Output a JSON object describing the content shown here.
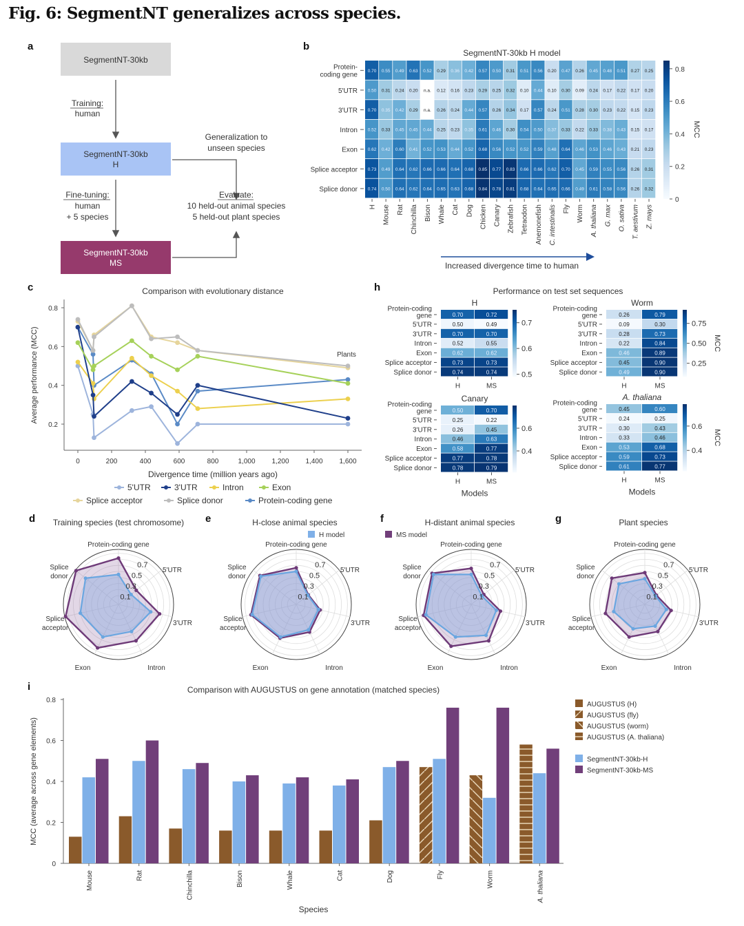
{
  "figure_title": "Fig. 6: SegmentNT generalizes across species.",
  "panel_labels": [
    "a",
    "b",
    "c",
    "d",
    "e",
    "f",
    "g",
    "h",
    "i"
  ],
  "colors": {
    "box_base": "#d9d9d9",
    "box_h": "#a9c4f5",
    "box_ms": "#963a6c",
    "h_model": "#7fb0e8",
    "ms_model": "#713f7a",
    "augustus": "#8a5a2b",
    "arrow": "#1f4e9c"
  },
  "panel_a": {
    "box_base": [
      "SegmentNT-30kb"
    ],
    "box_h": [
      "SegmentNT-30kb",
      "H"
    ],
    "box_ms": [
      "SegmentNT-30kb",
      "MS"
    ],
    "training": [
      "Training:",
      "human"
    ],
    "finetuning": [
      "Fine-tuning:",
      "human",
      "+ 5 species"
    ],
    "generalization": [
      "Generalization to",
      "unseen species"
    ],
    "evaluate": [
      "Evaluate:",
      "10 held-out animal species",
      "5 held-out plant species"
    ]
  },
  "chart_data": [
    {
      "type": "heatmap",
      "title": "SegmentNT-30kb H model",
      "rows": [
        [
          "Protein-",
          "coding gene"
        ],
        [
          "5'UTR"
        ],
        [
          "3'UTR"
        ],
        [
          "Intron"
        ],
        [
          "Exon"
        ],
        [
          "Splice acceptor"
        ],
        [
          "Splice donor"
        ]
      ],
      "columns": [
        "H",
        "Mouse",
        "Rat",
        "Chinchilla",
        "Bison",
        "Whale",
        "Cat",
        "Dog",
        "Chicken",
        "Canary",
        "Zebrafish",
        "Tetraodon",
        "Anemonefish",
        "C. intestinalis",
        "Fly",
        "Worm",
        "A. thaliana",
        "G. max",
        "O. sativa",
        "T. aestivum",
        "Z. mays"
      ],
      "values": [
        [
          0.7,
          0.55,
          0.49,
          0.63,
          0.52,
          0.29,
          0.36,
          0.42,
          0.57,
          0.5,
          0.31,
          0.51,
          0.56,
          0.2,
          0.47,
          0.26,
          0.45,
          0.48,
          0.51,
          0.27,
          0.25
        ],
        [
          0.5,
          0.31,
          0.24,
          0.2,
          null,
          0.12,
          0.16,
          0.23,
          0.29,
          0.25,
          0.32,
          0.1,
          0.44,
          0.1,
          0.3,
          0.09,
          0.24,
          0.17,
          0.22,
          0.17,
          0.2
        ],
        [
          0.7,
          0.35,
          0.42,
          0.29,
          null,
          0.26,
          0.24,
          0.44,
          0.57,
          0.26,
          0.34,
          0.17,
          0.57,
          0.24,
          0.51,
          0.28,
          0.3,
          0.23,
          0.22,
          0.15,
          0.23
        ],
        [
          0.52,
          0.33,
          0.45,
          0.45,
          0.44,
          0.25,
          0.23,
          0.35,
          0.61,
          0.46,
          0.3,
          0.54,
          0.5,
          0.37,
          0.33,
          0.22,
          0.33,
          0.38,
          0.43,
          0.15,
          0.17
        ],
        [
          0.62,
          0.42,
          0.6,
          0.41,
          0.52,
          0.53,
          0.44,
          0.52,
          0.68,
          0.56,
          0.52,
          0.52,
          0.59,
          0.48,
          0.64,
          0.46,
          0.53,
          0.46,
          0.43,
          0.21,
          0.23
        ],
        [
          0.73,
          0.49,
          0.64,
          0.62,
          0.66,
          0.66,
          0.64,
          0.68,
          0.85,
          0.77,
          0.83,
          0.66,
          0.66,
          0.62,
          0.7,
          0.45,
          0.59,
          0.55,
          0.56,
          0.26,
          0.31
        ],
        [
          0.74,
          0.5,
          0.64,
          0.62,
          0.64,
          0.65,
          0.63,
          0.68,
          0.84,
          0.78,
          0.81,
          0.68,
          0.64,
          0.65,
          0.66,
          0.49,
          0.61,
          0.58,
          0.56,
          0.26,
          0.32
        ]
      ],
      "na_label": "n.a.",
      "colorbar_label": "MCC",
      "colorbar_range": [
        0,
        0.85
      ],
      "colorbar_ticks": [
        0,
        0.2,
        0.4,
        0.6,
        0.8
      ],
      "colorbar_tick_labels": [
        "0",
        "0.2",
        "0.4",
        "0.6",
        "0.8"
      ],
      "xlabel": "Increased divergence time to human"
    },
    {
      "type": "line",
      "title": "Comparison with evolutionary distance",
      "xlabel": "Divergence time (million years ago)",
      "ylabel": "Average performance (MCC)",
      "xlim": [
        -40,
        1660
      ],
      "ylim": [
        0.07,
        0.84
      ],
      "xticks": [
        0,
        200,
        400,
        600,
        800,
        1000,
        1200,
        1400,
        1600
      ],
      "xtick_labels": [
        "0",
        "200",
        "400",
        "600",
        "800",
        "1,000",
        "1,200",
        "1,400",
        "1,600"
      ],
      "yticks": [
        0.2,
        0.4,
        0.6,
        0.8
      ],
      "ytick_labels": [
        "0.2",
        "0.4",
        "0.6",
        "0.8"
      ],
      "annotation": "Plants",
      "x": [
        0,
        90,
        96,
        320,
        435,
        590,
        710,
        1600
      ],
      "series": [
        {
          "name": "5'UTR",
          "color": "#9db4dc",
          "values": [
            0.5,
            0.25,
            0.13,
            0.27,
            0.29,
            0.1,
            0.2,
            0.2
          ]
        },
        {
          "name": "3'UTR",
          "color": "#1f3f8a",
          "values": [
            0.7,
            0.35,
            0.24,
            0.42,
            0.36,
            0.25,
            0.4,
            0.23
          ]
        },
        {
          "name": "Intron",
          "color": "#ecd04e",
          "values": [
            0.52,
            0.41,
            0.33,
            0.54,
            0.45,
            0.37,
            0.28,
            0.33
          ]
        },
        {
          "name": "Exon",
          "color": "#a6d15a",
          "values": [
            0.62,
            0.48,
            0.5,
            0.63,
            0.55,
            0.48,
            0.55,
            0.41
          ]
        },
        {
          "name": "Splice acceptor",
          "color": "#e6d59c",
          "values": [
            0.73,
            0.58,
            0.66,
            0.81,
            0.65,
            0.62,
            0.58,
            0.49
          ]
        },
        {
          "name": "Splice donor",
          "color": "#bdbdbd",
          "values": [
            0.74,
            0.58,
            0.65,
            0.81,
            0.64,
            0.65,
            0.58,
            0.5
          ]
        },
        {
          "name": "Protein-coding gene",
          "color": "#5a8ac6",
          "values": [
            0.7,
            0.56,
            0.4,
            0.53,
            0.46,
            0.2,
            0.37,
            0.43
          ]
        }
      ]
    },
    {
      "type": "radar",
      "title": "Training species (test chromosome)",
      "axes": [
        [
          "Protein-coding gene"
        ],
        [
          "5'UTR"
        ],
        [
          "3'UTR"
        ],
        [
          "Intron"
        ],
        [
          "Exon"
        ],
        [
          "Splice",
          "acceptor"
        ],
        [
          "Splice",
          "donor"
        ]
      ],
      "ring_labels": [
        "0.1",
        "0.3",
        "0.5",
        "0.7"
      ],
      "series": [
        {
          "name": "H model",
          "values": [
            0.45,
            0.22,
            0.5,
            0.45,
            0.55,
            0.6,
            0.65
          ]
        },
        {
          "name": "MS model",
          "values": [
            0.72,
            0.33,
            0.65,
            0.62,
            0.75,
            0.85,
            0.85
          ]
        }
      ]
    },
    {
      "type": "radar",
      "title": "H-close animal species",
      "axes": [
        [
          "Protein-coding gene"
        ],
        [
          "5'UTR"
        ],
        [
          "3'UTR"
        ],
        [
          "Intron"
        ],
        [
          "Exon"
        ],
        [
          "Splice",
          "acceptor"
        ],
        [
          "Splice",
          "donor"
        ]
      ],
      "ring_labels": [
        "0.1",
        "0.3",
        "0.5",
        "0.7"
      ],
      "series": [
        {
          "name": "H model",
          "values": [
            0.5,
            0.2,
            0.33,
            0.42,
            0.55,
            0.7,
            0.7
          ]
        },
        {
          "name": "MS model",
          "values": [
            0.56,
            0.21,
            0.36,
            0.46,
            0.57,
            0.72,
            0.72
          ]
        }
      ]
    },
    {
      "type": "radar",
      "title": "H-distant animal species",
      "axes": [
        [
          "Protein-coding gene"
        ],
        [
          "5'UTR"
        ],
        [
          "3'UTR"
        ],
        [
          "Intron"
        ],
        [
          "Exon"
        ],
        [
          "Splice",
          "acceptor"
        ],
        [
          "Splice",
          "donor"
        ]
      ],
      "ring_labels": [
        "0.1",
        "0.3",
        "0.5",
        "0.7"
      ],
      "series": [
        {
          "name": "H model",
          "values": [
            0.45,
            0.18,
            0.38,
            0.52,
            0.55,
            0.72,
            0.75
          ]
        },
        {
          "name": "MS model",
          "values": [
            0.55,
            0.22,
            0.45,
            0.62,
            0.72,
            0.76,
            0.78
          ]
        }
      ]
    },
    {
      "type": "radar",
      "title": "Plant species",
      "axes": [
        [
          "Protein-coding gene"
        ],
        [
          "5'UTR"
        ],
        [
          "3'UTR"
        ],
        [
          "Intron"
        ],
        [
          "Exon"
        ],
        [
          "Splice",
          "acceptor"
        ],
        [
          "Splice",
          "donor"
        ]
      ],
      "ring_labels": [
        "0.1",
        "0.3",
        "0.5",
        "0.7"
      ],
      "series": [
        {
          "name": "H model",
          "values": [
            0.38,
            0.18,
            0.32,
            0.35,
            0.4,
            0.48,
            0.5
          ]
        },
        {
          "name": "MS model",
          "values": [
            0.48,
            0.2,
            0.4,
            0.45,
            0.55,
            0.62,
            0.65
          ]
        }
      ]
    },
    {
      "type": "heatmap",
      "title": "Performance on test set sequences",
      "xlabel": "Models",
      "colorbar_label": "MCC",
      "rows": [
        [
          "Protein-coding",
          "gene"
        ],
        [
          "5'UTR"
        ],
        [
          "3'UTR"
        ],
        [
          "Intron"
        ],
        [
          "Exon"
        ],
        [
          "Splice acceptor"
        ],
        [
          "Splice donor"
        ]
      ],
      "columns": [
        "H",
        "MS"
      ],
      "panels": [
        {
          "name": "H",
          "values": [
            [
              0.7,
              0.72
            ],
            [
              0.5,
              0.49
            ],
            [
              0.7,
              0.7
            ],
            [
              0.52,
              0.55
            ],
            [
              0.62,
              0.62
            ],
            [
              0.73,
              0.73
            ],
            [
              0.74,
              0.74
            ]
          ],
          "colorbar_range": [
            0.49,
            0.75
          ],
          "colorbar_ticks": [
            0.5,
            0.6,
            0.7
          ],
          "colorbar_tick_labels": [
            "0.5",
            "0.6",
            "0.7"
          ]
        },
        {
          "name": "Worm",
          "values": [
            [
              0.26,
              0.79
            ],
            [
              0.09,
              0.3
            ],
            [
              0.28,
              0.73
            ],
            [
              0.22,
              0.84
            ],
            [
              0.46,
              0.89
            ],
            [
              0.45,
              0.9
            ],
            [
              0.49,
              0.9
            ]
          ],
          "colorbar_range": [
            0.08,
            0.92
          ],
          "colorbar_ticks": [
            0.25,
            0.5,
            0.75
          ],
          "colorbar_tick_labels": [
            "0.25",
            "0.50",
            "0.75"
          ]
        },
        {
          "name": "Canary",
          "values": [
            [
              0.5,
              0.7
            ],
            [
              0.25,
              0.22
            ],
            [
              0.26,
              0.45
            ],
            [
              0.46,
              0.63
            ],
            [
              0.58,
              0.77
            ],
            [
              0.77,
              0.78
            ],
            [
              0.78,
              0.79
            ]
          ],
          "colorbar_range": [
            0.21,
            0.8
          ],
          "colorbar_ticks": [
            0.4,
            0.6
          ],
          "colorbar_tick_labels": [
            "0.4",
            "0.6"
          ]
        },
        {
          "name": "A. thaliana",
          "values": [
            [
              0.45,
              0.6
            ],
            [
              0.24,
              0.25
            ],
            [
              0.3,
              0.43
            ],
            [
              0.33,
              0.46
            ],
            [
              0.53,
              0.68
            ],
            [
              0.59,
              0.73
            ],
            [
              0.61,
              0.77
            ]
          ],
          "colorbar_range": [
            0.23,
            0.78
          ],
          "colorbar_ticks": [
            0.4,
            0.6
          ],
          "colorbar_tick_labels": [
            "0.4",
            "0.6"
          ]
        }
      ]
    },
    {
      "type": "bar",
      "title": "Comparison with AUGUSTUS on gene annotation (matched species)",
      "xlabel": "Species",
      "ylabel": "MCC (average across gene elements)",
      "ylim": [
        0,
        0.8
      ],
      "yticks": [
        0,
        0.2,
        0.4,
        0.6,
        0.8
      ],
      "ytick_labels": [
        "0",
        "0.2",
        "0.4",
        "0.6",
        "0.8"
      ],
      "categories": [
        "Mouse",
        "Rat",
        "Chinchilla",
        "Bison",
        "Whale",
        "Cat",
        "Dog",
        "Fly",
        "Worm",
        "A. thaliana"
      ],
      "series": [
        {
          "name": "AUGUSTUS",
          "values": [
            0.13,
            0.23,
            0.17,
            0.16,
            0.16,
            0.16,
            0.21,
            0.47,
            0.43,
            0.58
          ],
          "variant": [
            "H",
            "H",
            "H",
            "H",
            "H",
            "H",
            "H",
            "fly",
            "worm",
            "A. thaliana"
          ]
        },
        {
          "name": "SegmentNT-30kb-H",
          "values": [
            0.42,
            0.5,
            0.46,
            0.4,
            0.39,
            0.38,
            0.47,
            0.51,
            0.32,
            0.44
          ]
        },
        {
          "name": "SegmentNT-30kb-MS",
          "values": [
            0.51,
            0.6,
            0.49,
            0.43,
            0.42,
            0.41,
            0.5,
            0.76,
            0.76,
            0.56
          ]
        }
      ],
      "legend": [
        "AUGUSTUS (H)",
        "AUGUSTUS (fly)",
        "AUGUSTUS (worm)",
        "AUGUSTUS (A. thaliana)",
        "SegmentNT-30kb-H",
        "SegmentNT-30kb-MS"
      ]
    }
  ]
}
